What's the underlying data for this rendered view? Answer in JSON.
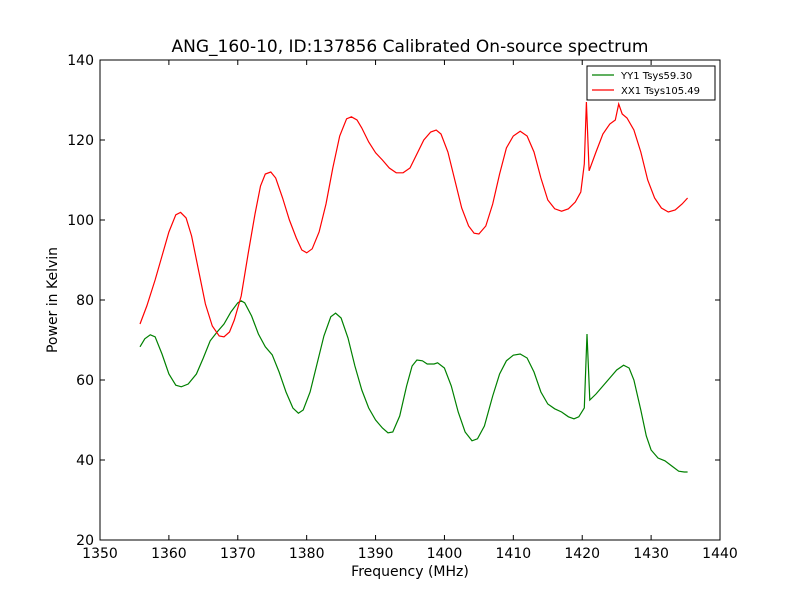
{
  "chart_data": {
    "type": "line",
    "title": "ANG_160-10, ID:137856 Calibrated On-source spectrum",
    "xlabel": "Frequency (MHz)",
    "ylabel": "Power in Kelvin",
    "xlim": [
      1350,
      1440
    ],
    "ylim": [
      20,
      140
    ],
    "xticks": [
      1350,
      1360,
      1370,
      1380,
      1390,
      1400,
      1410,
      1420,
      1430,
      1440
    ],
    "yticks": [
      20,
      40,
      60,
      80,
      100,
      120,
      140
    ],
    "grid": false,
    "legend_position": "top-right",
    "series": [
      {
        "name": "YY1 Tsys59.30",
        "color": "#008000",
        "points": [
          [
            1355.8,
            68.3
          ],
          [
            1356.5,
            70.3
          ],
          [
            1357.3,
            71.3
          ],
          [
            1358.0,
            70.8
          ],
          [
            1359.0,
            66.5
          ],
          [
            1360.0,
            61.5
          ],
          [
            1361.0,
            58.7
          ],
          [
            1361.8,
            58.3
          ],
          [
            1362.8,
            59.0
          ],
          [
            1364.0,
            61.5
          ],
          [
            1365.0,
            65.5
          ],
          [
            1366.0,
            69.8
          ],
          [
            1367.0,
            72.0
          ],
          [
            1368.0,
            74.0
          ],
          [
            1369.0,
            77.0
          ],
          [
            1370.0,
            79.3
          ],
          [
            1370.5,
            79.8
          ],
          [
            1371.0,
            79.3
          ],
          [
            1372.0,
            76.0
          ],
          [
            1373.0,
            71.5
          ],
          [
            1374.0,
            68.3
          ],
          [
            1375.0,
            66.3
          ],
          [
            1376.0,
            62.0
          ],
          [
            1377.0,
            57.0
          ],
          [
            1378.0,
            53.0
          ],
          [
            1378.8,
            51.7
          ],
          [
            1379.5,
            52.5
          ],
          [
            1380.5,
            57.0
          ],
          [
            1381.5,
            64.0
          ],
          [
            1382.5,
            71.0
          ],
          [
            1383.5,
            75.8
          ],
          [
            1384.2,
            76.7
          ],
          [
            1385.0,
            75.5
          ],
          [
            1386.0,
            70.5
          ],
          [
            1387.0,
            63.5
          ],
          [
            1388.0,
            57.5
          ],
          [
            1389.0,
            53.0
          ],
          [
            1390.0,
            50.0
          ],
          [
            1391.0,
            48.0
          ],
          [
            1391.8,
            46.8
          ],
          [
            1392.5,
            47.0
          ],
          [
            1393.5,
            51.0
          ],
          [
            1394.5,
            58.5
          ],
          [
            1395.3,
            63.5
          ],
          [
            1396.0,
            65.0
          ],
          [
            1396.8,
            64.8
          ],
          [
            1397.5,
            64.0
          ],
          [
            1398.5,
            64.0
          ],
          [
            1399.0,
            64.3
          ],
          [
            1400.0,
            63.0
          ],
          [
            1401.0,
            58.5
          ],
          [
            1402.0,
            52.0
          ],
          [
            1403.0,
            47.0
          ],
          [
            1404.0,
            44.8
          ],
          [
            1404.8,
            45.3
          ],
          [
            1405.8,
            48.5
          ],
          [
            1407.0,
            56.0
          ],
          [
            1408.0,
            61.5
          ],
          [
            1409.0,
            64.8
          ],
          [
            1410.0,
            66.2
          ],
          [
            1411.0,
            66.5
          ],
          [
            1412.0,
            65.5
          ],
          [
            1413.0,
            62.0
          ],
          [
            1414.0,
            57.0
          ],
          [
            1415.0,
            54.0
          ],
          [
            1416.0,
            52.8
          ],
          [
            1417.0,
            52.0
          ],
          [
            1418.0,
            50.8
          ],
          [
            1418.8,
            50.3
          ],
          [
            1419.5,
            50.8
          ],
          [
            1420.3,
            53.0
          ],
          [
            1420.7,
            71.5
          ],
          [
            1421.1,
            55.0
          ],
          [
            1422.0,
            56.5
          ],
          [
            1423.0,
            58.5
          ],
          [
            1424.0,
            60.5
          ],
          [
            1425.0,
            62.5
          ],
          [
            1426.0,
            63.7
          ],
          [
            1426.8,
            63.0
          ],
          [
            1427.5,
            60.0
          ],
          [
            1428.5,
            52.5
          ],
          [
            1429.3,
            46.0
          ],
          [
            1430.0,
            42.5
          ],
          [
            1431.0,
            40.5
          ],
          [
            1432.0,
            39.8
          ],
          [
            1433.0,
            38.5
          ],
          [
            1434.0,
            37.2
          ],
          [
            1434.8,
            37.0
          ],
          [
            1435.3,
            37.0
          ]
        ]
      },
      {
        "name": "XX1 Tsys105.49",
        "color": "#ff0000",
        "points": [
          [
            1355.8,
            74.0
          ],
          [
            1356.8,
            78.5
          ],
          [
            1358.0,
            85.0
          ],
          [
            1359.0,
            91.0
          ],
          [
            1360.0,
            97.0
          ],
          [
            1361.0,
            101.3
          ],
          [
            1361.7,
            101.9
          ],
          [
            1362.5,
            100.5
          ],
          [
            1363.3,
            96.0
          ],
          [
            1364.3,
            87.5
          ],
          [
            1365.3,
            79.0
          ],
          [
            1366.3,
            73.5
          ],
          [
            1367.3,
            71.0
          ],
          [
            1368.0,
            70.8
          ],
          [
            1368.8,
            72.0
          ],
          [
            1369.5,
            75.0
          ],
          [
            1370.5,
            81.0
          ],
          [
            1371.5,
            91.5
          ],
          [
            1372.5,
            101.5
          ],
          [
            1373.3,
            108.5
          ],
          [
            1374.0,
            111.5
          ],
          [
            1374.8,
            112.0
          ],
          [
            1375.5,
            110.5
          ],
          [
            1376.5,
            105.5
          ],
          [
            1377.5,
            100.0
          ],
          [
            1378.5,
            95.5
          ],
          [
            1379.3,
            92.5
          ],
          [
            1380.0,
            91.8
          ],
          [
            1380.8,
            92.8
          ],
          [
            1381.8,
            97.0
          ],
          [
            1382.8,
            104.0
          ],
          [
            1383.8,
            113.0
          ],
          [
            1384.8,
            121.0
          ],
          [
            1385.8,
            125.3
          ],
          [
            1386.5,
            125.8
          ],
          [
            1387.3,
            125.0
          ],
          [
            1388.0,
            123.0
          ],
          [
            1389.0,
            119.5
          ],
          [
            1390.0,
            116.8
          ],
          [
            1391.0,
            115.0
          ],
          [
            1392.0,
            113.0
          ],
          [
            1393.0,
            111.8
          ],
          [
            1394.0,
            111.8
          ],
          [
            1395.0,
            113.0
          ],
          [
            1396.0,
            116.5
          ],
          [
            1397.0,
            120.0
          ],
          [
            1398.0,
            122.0
          ],
          [
            1398.8,
            122.5
          ],
          [
            1399.5,
            121.5
          ],
          [
            1400.5,
            117.0
          ],
          [
            1401.5,
            110.0
          ],
          [
            1402.5,
            103.0
          ],
          [
            1403.5,
            98.5
          ],
          [
            1404.3,
            96.7
          ],
          [
            1405.0,
            96.5
          ],
          [
            1406.0,
            98.5
          ],
          [
            1407.0,
            104.0
          ],
          [
            1408.0,
            111.5
          ],
          [
            1409.0,
            118.0
          ],
          [
            1410.0,
            121.0
          ],
          [
            1411.0,
            122.2
          ],
          [
            1412.0,
            121.0
          ],
          [
            1413.0,
            117.0
          ],
          [
            1414.0,
            110.5
          ],
          [
            1415.0,
            105.0
          ],
          [
            1416.0,
            102.8
          ],
          [
            1417.0,
            102.2
          ],
          [
            1418.0,
            102.8
          ],
          [
            1419.0,
            104.5
          ],
          [
            1419.8,
            107.0
          ],
          [
            1420.3,
            114.0
          ],
          [
            1420.6,
            129.5
          ],
          [
            1421.0,
            112.3
          ],
          [
            1422.0,
            117.0
          ],
          [
            1423.0,
            121.5
          ],
          [
            1424.0,
            124.0
          ],
          [
            1424.8,
            125.0
          ],
          [
            1425.3,
            129.0
          ],
          [
            1425.8,
            126.5
          ],
          [
            1426.5,
            125.5
          ],
          [
            1427.5,
            122.5
          ],
          [
            1428.5,
            117.0
          ],
          [
            1429.5,
            110.0
          ],
          [
            1430.5,
            105.5
          ],
          [
            1431.5,
            103.0
          ],
          [
            1432.5,
            102.0
          ],
          [
            1433.5,
            102.5
          ],
          [
            1434.5,
            104.0
          ],
          [
            1435.3,
            105.5
          ]
        ]
      }
    ]
  }
}
